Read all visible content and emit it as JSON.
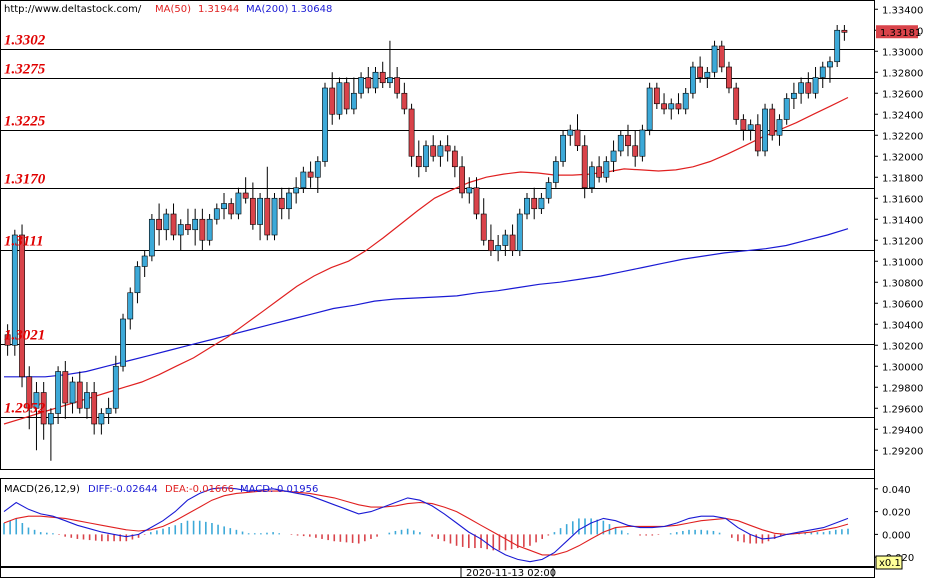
{
  "header": {
    "url": "http://www.deltastock.com/",
    "ma50_label": "MA(50)",
    "ma50_value": "1.31944",
    "ma200_label": "MA(200)",
    "ma200_value": "1.30648"
  },
  "macd_header": {
    "title": "MACD(26,12,9)",
    "diff": "DIFF:-0.02644",
    "dea": "DEA:-0.01666",
    "macd": "MACD:-0.01956"
  },
  "time_label": "2020-11-13 02:00",
  "zoom_label": "x0.1",
  "colors": {
    "bull": "#3ca9d8",
    "bear": "#d9434a",
    "ma50": "#e02020",
    "ma200": "#1a1ad4",
    "level_text": "#e00000",
    "price_tag_bg": "#d9434a"
  },
  "chart_data": [
    {
      "type": "candlestick",
      "ylim": [
        1.2905,
        1.3345
      ],
      "y_ticks": [
        "1.29200",
        "1.29400",
        "1.29600",
        "1.29800",
        "1.30000",
        "1.30200",
        "1.30400",
        "1.30600",
        "1.30800",
        "1.31000",
        "1.31200",
        "1.31400",
        "1.31600",
        "1.31800",
        "1.32000",
        "1.32200",
        "1.32400",
        "1.32600",
        "1.32800",
        "1.33000",
        "1.33200",
        "1.33400"
      ],
      "current_price": "1.33181",
      "current_price_value": 1.33181,
      "levels": [
        {
          "label": "1.3302",
          "value": 1.3302
        },
        {
          "label": "1.3275",
          "value": 1.3275
        },
        {
          "label": "1.3225",
          "value": 1.3225
        },
        {
          "label": "1.3170",
          "value": 1.317
        },
        {
          "label": "1.3111",
          "value": 1.3111
        },
        {
          "label": "1.3021",
          "value": 1.3021
        },
        {
          "label": "1.2952",
          "value": 1.2952
        }
      ],
      "ohlc": [
        [
          1.303,
          1.304,
          1.301,
          1.302
        ],
        [
          1.302,
          1.313,
          1.301,
          1.3125
        ],
        [
          1.3125,
          1.3135,
          1.298,
          1.299
        ],
        [
          1.299,
          1.3,
          1.294,
          1.296
        ],
        [
          1.296,
          1.2985,
          1.292,
          1.2975
        ],
        [
          1.2975,
          1.2985,
          1.293,
          1.2945
        ],
        [
          1.2945,
          1.296,
          1.291,
          1.2955
        ],
        [
          1.2955,
          1.3,
          1.2945,
          1.2995
        ],
        [
          1.2995,
          1.3005,
          1.295,
          1.2965
        ],
        [
          1.2965,
          1.299,
          1.2955,
          1.2985
        ],
        [
          1.2985,
          1.2995,
          1.2955,
          1.296
        ],
        [
          1.296,
          1.2985,
          1.295,
          1.2975
        ],
        [
          1.2975,
          1.2985,
          1.2935,
          1.2945
        ],
        [
          1.2945,
          1.296,
          1.2935,
          1.2955
        ],
        [
          1.2955,
          1.297,
          1.2945,
          1.296
        ],
        [
          1.296,
          1.301,
          1.2955,
          1.3
        ],
        [
          1.3,
          1.305,
          1.2995,
          1.3045
        ],
        [
          1.3045,
          1.3075,
          1.3035,
          1.307
        ],
        [
          1.307,
          1.31,
          1.306,
          1.3095
        ],
        [
          1.3095,
          1.311,
          1.3085,
          1.3105
        ],
        [
          1.3105,
          1.3145,
          1.31,
          1.314
        ],
        [
          1.314,
          1.3155,
          1.3115,
          1.313
        ],
        [
          1.313,
          1.315,
          1.312,
          1.3145
        ],
        [
          1.3145,
          1.3155,
          1.312,
          1.3125
        ],
        [
          1.3125,
          1.314,
          1.311,
          1.3135
        ],
        [
          1.3135,
          1.315,
          1.3125,
          1.313
        ],
        [
          1.313,
          1.315,
          1.3115,
          1.314
        ],
        [
          1.314,
          1.315,
          1.311,
          1.312
        ],
        [
          1.312,
          1.3145,
          1.3115,
          1.314
        ],
        [
          1.314,
          1.3155,
          1.3135,
          1.315
        ],
        [
          1.315,
          1.3165,
          1.314,
          1.3155
        ],
        [
          1.3155,
          1.316,
          1.314,
          1.3145
        ],
        [
          1.3145,
          1.317,
          1.314,
          1.3165
        ],
        [
          1.3165,
          1.318,
          1.3155,
          1.316
        ],
        [
          1.316,
          1.3175,
          1.313,
          1.3135
        ],
        [
          1.3135,
          1.3165,
          1.312,
          1.316
        ],
        [
          1.316,
          1.319,
          1.312,
          1.3125
        ],
        [
          1.3125,
          1.3165,
          1.312,
          1.316
        ],
        [
          1.316,
          1.317,
          1.314,
          1.315
        ],
        [
          1.315,
          1.317,
          1.314,
          1.3165
        ],
        [
          1.3165,
          1.318,
          1.3155,
          1.317
        ],
        [
          1.317,
          1.319,
          1.3165,
          1.3185
        ],
        [
          1.3185,
          1.3195,
          1.317,
          1.318
        ],
        [
          1.318,
          1.32,
          1.3165,
          1.3195
        ],
        [
          1.3195,
          1.327,
          1.319,
          1.3265
        ],
        [
          1.3265,
          1.328,
          1.323,
          1.324
        ],
        [
          1.324,
          1.3275,
          1.3235,
          1.327
        ],
        [
          1.327,
          1.3275,
          1.324,
          1.3245
        ],
        [
          1.3245,
          1.3275,
          1.324,
          1.326
        ],
        [
          1.326,
          1.328,
          1.3255,
          1.3275
        ],
        [
          1.3275,
          1.3285,
          1.326,
          1.3265
        ],
        [
          1.3265,
          1.3285,
          1.326,
          1.328
        ],
        [
          1.328,
          1.329,
          1.3265,
          1.327
        ],
        [
          1.327,
          1.331,
          1.3265,
          1.3275
        ],
        [
          1.3275,
          1.3285,
          1.3255,
          1.326
        ],
        [
          1.326,
          1.327,
          1.324,
          1.3245
        ],
        [
          1.3245,
          1.325,
          1.319,
          1.32
        ],
        [
          1.32,
          1.3215,
          1.318,
          1.319
        ],
        [
          1.319,
          1.3215,
          1.3185,
          1.321
        ],
        [
          1.321,
          1.322,
          1.3195,
          1.32
        ],
        [
          1.32,
          1.3215,
          1.319,
          1.321
        ],
        [
          1.321,
          1.322,
          1.3195,
          1.3205
        ],
        [
          1.3205,
          1.321,
          1.318,
          1.319
        ],
        [
          1.319,
          1.32,
          1.316,
          1.3165
        ],
        [
          1.3165,
          1.318,
          1.3155,
          1.317
        ],
        [
          1.317,
          1.318,
          1.314,
          1.3145
        ],
        [
          1.3145,
          1.316,
          1.3115,
          1.312
        ],
        [
          1.312,
          1.3135,
          1.3105,
          1.311
        ],
        [
          1.311,
          1.3125,
          1.31,
          1.3115
        ],
        [
          1.3115,
          1.313,
          1.3105,
          1.3125
        ],
        [
          1.3125,
          1.3135,
          1.3105,
          1.311
        ],
        [
          1.311,
          1.315,
          1.3105,
          1.3145
        ],
        [
          1.3145,
          1.3165,
          1.314,
          1.316
        ],
        [
          1.316,
          1.317,
          1.314,
          1.315
        ],
        [
          1.315,
          1.3165,
          1.3145,
          1.316
        ],
        [
          1.316,
          1.318,
          1.3155,
          1.3175
        ],
        [
          1.3175,
          1.32,
          1.317,
          1.3195
        ],
        [
          1.3195,
          1.3225,
          1.319,
          1.322
        ],
        [
          1.322,
          1.323,
          1.321,
          1.3225
        ],
        [
          1.3225,
          1.324,
          1.3205,
          1.321
        ],
        [
          1.321,
          1.322,
          1.316,
          1.317
        ],
        [
          1.317,
          1.3195,
          1.3165,
          1.319
        ],
        [
          1.319,
          1.32,
          1.3175,
          1.318
        ],
        [
          1.318,
          1.32,
          1.3175,
          1.3195
        ],
        [
          1.3195,
          1.3215,
          1.3185,
          1.3205
        ],
        [
          1.3205,
          1.3225,
          1.32,
          1.322
        ],
        [
          1.322,
          1.323,
          1.32,
          1.321
        ],
        [
          1.321,
          1.3225,
          1.319,
          1.32
        ],
        [
          1.32,
          1.323,
          1.3195,
          1.3225
        ],
        [
          1.3225,
          1.327,
          1.322,
          1.3265
        ],
        [
          1.3265,
          1.327,
          1.3245,
          1.325
        ],
        [
          1.325,
          1.326,
          1.324,
          1.3245
        ],
        [
          1.3245,
          1.3255,
          1.3235,
          1.325
        ],
        [
          1.325,
          1.326,
          1.324,
          1.3245
        ],
        [
          1.3245,
          1.3265,
          1.324,
          1.326
        ],
        [
          1.326,
          1.329,
          1.3255,
          1.3285
        ],
        [
          1.3285,
          1.3295,
          1.327,
          1.3275
        ],
        [
          1.3275,
          1.3285,
          1.3265,
          1.328
        ],
        [
          1.328,
          1.331,
          1.3275,
          1.3305
        ],
        [
          1.3305,
          1.331,
          1.328,
          1.3285
        ],
        [
          1.3285,
          1.329,
          1.326,
          1.3265
        ],
        [
          1.3265,
          1.327,
          1.323,
          1.3235
        ],
        [
          1.3235,
          1.324,
          1.3215,
          1.3225
        ],
        [
          1.3225,
          1.3235,
          1.3215,
          1.323
        ],
        [
          1.323,
          1.324,
          1.32,
          1.3205
        ],
        [
          1.3205,
          1.325,
          1.32,
          1.3245
        ],
        [
          1.3245,
          1.325,
          1.3215,
          1.322
        ],
        [
          1.322,
          1.324,
          1.321,
          1.3235
        ],
        [
          1.3235,
          1.326,
          1.323,
          1.3255
        ],
        [
          1.3255,
          1.327,
          1.3245,
          1.326
        ],
        [
          1.326,
          1.3275,
          1.325,
          1.327
        ],
        [
          1.327,
          1.328,
          1.3255,
          1.326
        ],
        [
          1.326,
          1.3285,
          1.3255,
          1.3275
        ],
        [
          1.3275,
          1.329,
          1.3265,
          1.3285
        ],
        [
          1.3285,
          1.3295,
          1.327,
          1.329
        ],
        [
          1.329,
          1.3325,
          1.3285,
          1.332
        ],
        [
          1.332,
          1.3325,
          1.331,
          1.3318
        ]
      ],
      "ma50": [
        1.2945,
        1.295,
        1.2955,
        1.296,
        1.2965,
        1.297,
        1.2975,
        1.298,
        1.2985,
        1.2992,
        1.3,
        1.3008,
        1.3018,
        1.3028,
        1.304,
        1.3052,
        1.3064,
        1.3076,
        1.3086,
        1.3094,
        1.31,
        1.311,
        1.3122,
        1.3135,
        1.3148,
        1.316,
        1.3168,
        1.3175,
        1.318,
        1.3183,
        1.3185,
        1.3184,
        1.3182,
        1.3182,
        1.3183,
        1.3185,
        1.3188,
        1.3187,
        1.3186,
        1.3187,
        1.319,
        1.3195,
        1.3202,
        1.321,
        1.3218,
        1.3225,
        1.3232,
        1.324,
        1.3248,
        1.3256
      ],
      "ma200": [
        1.299,
        1.299,
        1.299,
        1.2992,
        1.2995,
        1.3,
        1.3005,
        1.301,
        1.3015,
        1.302,
        1.3025,
        1.303,
        1.3035,
        1.304,
        1.3045,
        1.305,
        1.3055,
        1.3058,
        1.3062,
        1.3064,
        1.3065,
        1.3066,
        1.3067,
        1.307,
        1.3072,
        1.3075,
        1.3078,
        1.308,
        1.3083,
        1.3086,
        1.309,
        1.3094,
        1.3098,
        1.3102,
        1.3105,
        1.3108,
        1.311,
        1.3112,
        1.3115,
        1.312,
        1.3125,
        1.3131
      ]
    },
    {
      "type": "bar",
      "name": "MACD",
      "ylim": [
        -0.026,
        0.046
      ],
      "y_ticks": [
        "0.040",
        "0.020",
        "0.000",
        "-0.020"
      ],
      "diff_line": [
        0.02,
        0.028,
        0.022,
        0.018,
        0.016,
        0.012,
        0.008,
        0.005,
        0.002,
        0.0,
        -0.002,
        0.0,
        0.006,
        0.012,
        0.02,
        0.03,
        0.036,
        0.04,
        0.041,
        0.04,
        0.038,
        0.039,
        0.04,
        0.038,
        0.036,
        0.034,
        0.03,
        0.026,
        0.022,
        0.018,
        0.02,
        0.024,
        0.028,
        0.032,
        0.03,
        0.025,
        0.018,
        0.01,
        0.002,
        -0.004,
        -0.012,
        -0.018,
        -0.022,
        -0.024,
        -0.022,
        -0.016,
        -0.006,
        0.004,
        0.01,
        0.014,
        0.012,
        0.008,
        0.006,
        0.006,
        0.007,
        0.01,
        0.014,
        0.016,
        0.016,
        0.014,
        0.006,
        0.0,
        -0.004,
        -0.003,
        0.0,
        0.002,
        0.004,
        0.006,
        0.01,
        0.014
      ],
      "dea_line": [
        0.01,
        0.014,
        0.016,
        0.016,
        0.015,
        0.014,
        0.012,
        0.01,
        0.008,
        0.006,
        0.004,
        0.003,
        0.004,
        0.007,
        0.012,
        0.018,
        0.024,
        0.03,
        0.034,
        0.036,
        0.037,
        0.038,
        0.038,
        0.038,
        0.037,
        0.036,
        0.034,
        0.032,
        0.029,
        0.026,
        0.024,
        0.024,
        0.025,
        0.027,
        0.028,
        0.027,
        0.024,
        0.02,
        0.014,
        0.008,
        0.002,
        -0.004,
        -0.01,
        -0.014,
        -0.018,
        -0.018,
        -0.015,
        -0.01,
        -0.004,
        0.002,
        0.006,
        0.007,
        0.007,
        0.007,
        0.007,
        0.008,
        0.01,
        0.012,
        0.013,
        0.014,
        0.012,
        0.008,
        0.004,
        0.001,
        0.0,
        0.001,
        0.002,
        0.004,
        0.006,
        0.009
      ],
      "histogram": [
        0.01,
        0.014,
        0.006,
        0.002,
        0.001,
        -0.002,
        -0.004,
        -0.005,
        -0.006,
        -0.006,
        -0.006,
        -0.003,
        0.002,
        0.005,
        0.008,
        0.012,
        0.012,
        0.01,
        0.007,
        0.004,
        0.001,
        0.001,
        0.002,
        0.0,
        -0.001,
        -0.002,
        -0.004,
        -0.006,
        -0.007,
        -0.008,
        -0.004,
        0.0,
        0.003,
        0.005,
        0.002,
        -0.002,
        -0.006,
        -0.01,
        -0.012,
        -0.012,
        -0.014,
        -0.014,
        -0.012,
        -0.01,
        -0.004,
        0.002,
        0.009,
        0.014,
        0.014,
        0.012,
        0.006,
        0.001,
        -0.001,
        -0.001,
        0.0,
        0.002,
        0.004,
        0.004,
        0.003,
        0.0,
        -0.006,
        -0.008,
        -0.008,
        -0.004,
        0.0,
        0.001,
        0.002,
        0.002,
        0.004,
        0.005
      ]
    }
  ]
}
